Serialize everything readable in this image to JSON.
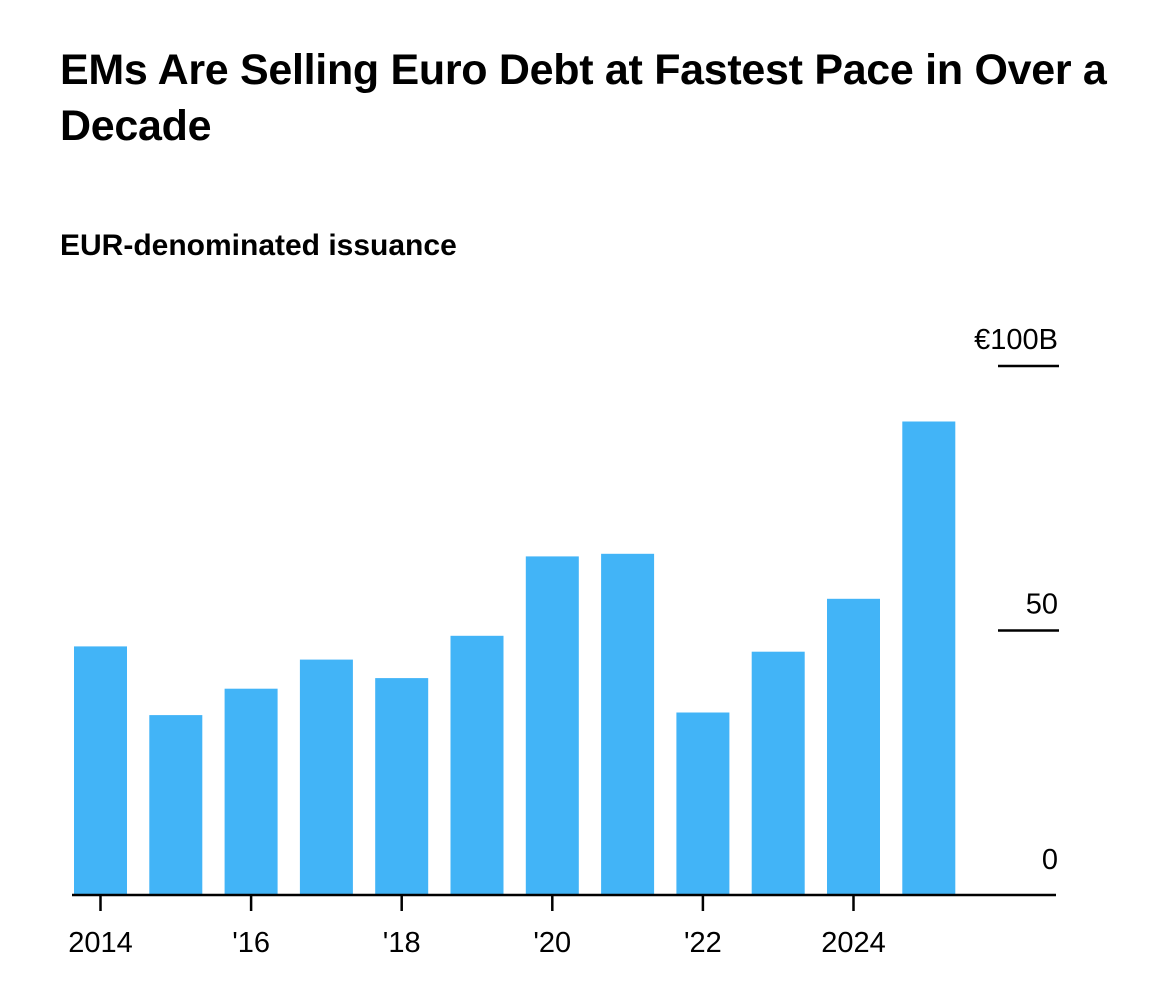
{
  "header": {
    "title": "EMs Are Selling Euro Debt at Fastest Pace in Over a Decade",
    "subtitle": "EUR-denominated issuance"
  },
  "colors": {
    "bar": "#42b4f7",
    "axis": "#000000"
  },
  "chart_data": {
    "type": "bar",
    "title": "EMs Are Selling Euro Debt at Fastest Pace in Over a Decade",
    "subtitle": "EUR-denominated issuance",
    "xlabel": "",
    "ylabel": "",
    "categories": [
      "2014",
      "2015",
      "2016",
      "2017",
      "2018",
      "2019",
      "2020",
      "2021",
      "2022",
      "2023",
      "2024",
      "2025"
    ],
    "values": [
      47,
      34,
      39,
      44.5,
      41,
      49,
      64,
      64.5,
      34.5,
      46,
      56,
      89.5
    ],
    "ylim": [
      0,
      100
    ],
    "y_ticks": [
      {
        "value": 100,
        "label": "€100B"
      },
      {
        "value": 50,
        "label": "50"
      },
      {
        "value": 0,
        "label": "0"
      }
    ],
    "x_ticks": [
      {
        "category": "2014",
        "label": "2014"
      },
      {
        "category": "2016",
        "label": "'16"
      },
      {
        "category": "2018",
        "label": "'18"
      },
      {
        "category": "2020",
        "label": "'20"
      },
      {
        "category": "2022",
        "label": "'22"
      },
      {
        "category": "2024",
        "label": "2024"
      }
    ],
    "y_axis_position": "right",
    "grid": false
  }
}
